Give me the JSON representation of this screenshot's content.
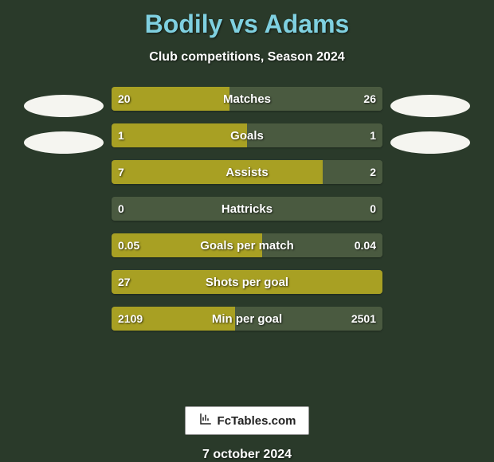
{
  "background_color": "#2a3a2a",
  "title": "Bodily vs Adams",
  "title_color": "#7fd0e0",
  "subtitle": "Club competitions, Season 2024",
  "subtitle_color": "#ffffff",
  "date": "7 october 2024",
  "date_color": "#ffffff",
  "logo_text": "FcTables.com",
  "ovals": {
    "fill_color": "#f5f5f0",
    "left_count": 2,
    "right_count": 2
  },
  "chart": {
    "bar_left_color": "#a8a023",
    "bar_right_color": "#4a5a40",
    "track_color": "#4a5a40",
    "text_color": "#ffffff",
    "rows": [
      {
        "label": "Matches",
        "left_val": "20",
        "right_val": "26",
        "left_pct": 43.5,
        "right_pct": 56.5
      },
      {
        "label": "Goals",
        "left_val": "1",
        "right_val": "1",
        "left_pct": 50.0,
        "right_pct": 50.0
      },
      {
        "label": "Assists",
        "left_val": "7",
        "right_val": "2",
        "left_pct": 77.8,
        "right_pct": 22.2
      },
      {
        "label": "Hattricks",
        "left_val": "0",
        "right_val": "0",
        "left_pct": 0.0,
        "right_pct": 0.0
      },
      {
        "label": "Goals per match",
        "left_val": "0.05",
        "right_val": "0.04",
        "left_pct": 55.6,
        "right_pct": 44.4
      },
      {
        "label": "Shots per goal",
        "left_val": "27",
        "right_val": "",
        "left_pct": 100.0,
        "right_pct": 0.0
      },
      {
        "label": "Min per goal",
        "left_val": "2109",
        "right_val": "2501",
        "left_pct": 45.7,
        "right_pct": 54.3
      }
    ]
  }
}
